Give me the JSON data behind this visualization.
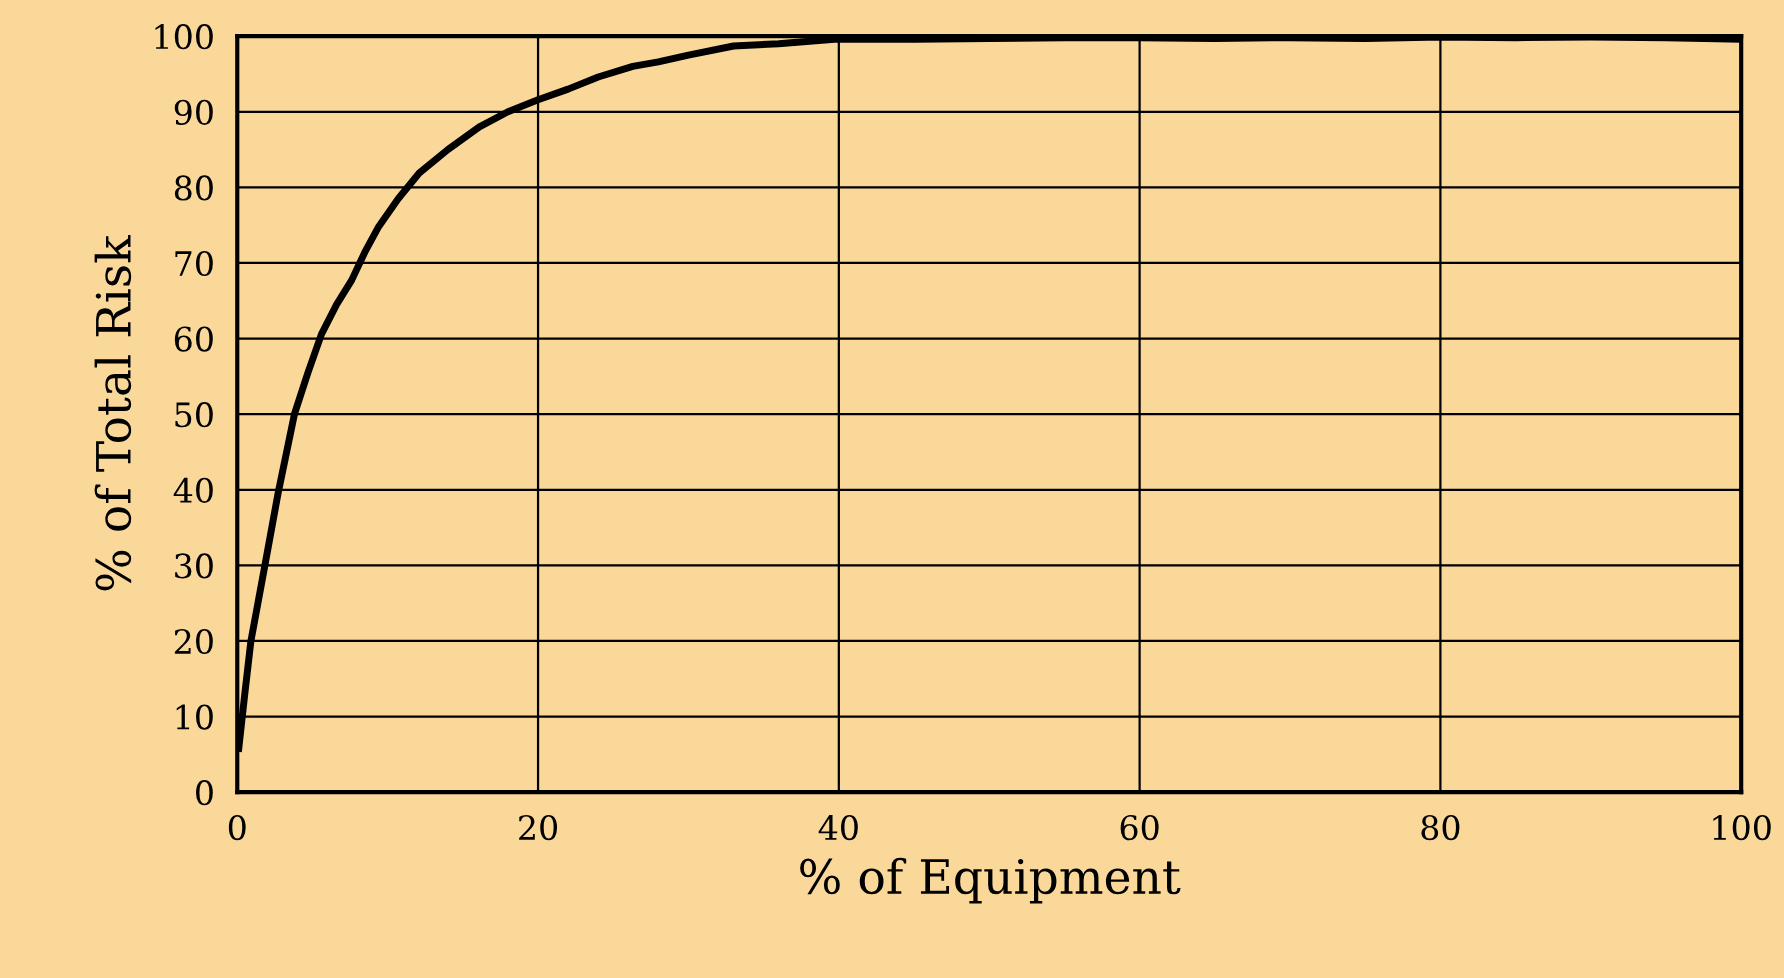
{
  "chart_data": {
    "type": "line",
    "xlabel": "% of Equipment",
    "ylabel": "% of Total Risk",
    "x": [
      0.1,
      0.5,
      0.9,
      1.8,
      2.7,
      3.8,
      4.7,
      5.6,
      6.6,
      7.6,
      8.5,
      9.4,
      10.7,
      12.1,
      14,
      16.1,
      18,
      20,
      22,
      24,
      26.3,
      28,
      30,
      33,
      36,
      39.7,
      45,
      50,
      55,
      60,
      65,
      70,
      75,
      80,
      85,
      90,
      95,
      100
    ],
    "series": [
      {
        "color": "#000000",
        "values": [
          5.8,
          13,
          19.9,
          29.6,
          39.4,
          50,
          55.5,
          60.6,
          64.5,
          67.7,
          71.5,
          74.8,
          78.5,
          81.9,
          85,
          88,
          90,
          91.6,
          93,
          94.6,
          96,
          96.6,
          97.5,
          98.7,
          99,
          99.6,
          99.6,
          99.7,
          99.8,
          99.8,
          99.7,
          99.8,
          99.7,
          99.9,
          99.8,
          99.9,
          99.8,
          99.6
        ]
      }
    ],
    "xlim": [
      0,
      100
    ],
    "ylim": [
      0,
      100
    ],
    "xticks": [
      0,
      20,
      40,
      60,
      80,
      100
    ],
    "yticks": [
      0,
      10,
      20,
      30,
      40,
      50,
      60,
      70,
      80,
      90,
      100
    ],
    "grid": true,
    "marker": "none",
    "line_style": "solid"
  }
}
